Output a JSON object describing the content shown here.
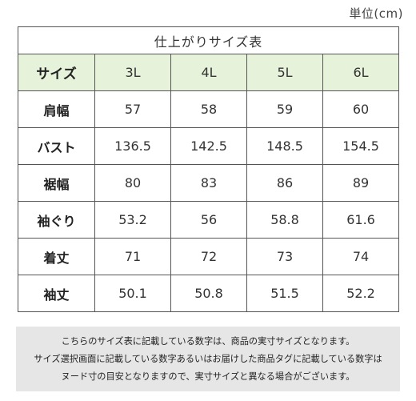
{
  "unit_label": "単位(cm)",
  "table": {
    "title": "仕上がりサイズ表",
    "header_label": "サイズ",
    "sizes": [
      "3L",
      "4L",
      "5L",
      "6L"
    ],
    "rows": [
      {
        "label": "肩幅",
        "values": [
          "57",
          "58",
          "59",
          "60"
        ]
      },
      {
        "label": "バスト",
        "values": [
          "136.5",
          "142.5",
          "148.5",
          "154.5"
        ]
      },
      {
        "label": "裾幅",
        "values": [
          "80",
          "83",
          "86",
          "89"
        ]
      },
      {
        "label": "袖ぐり",
        "values": [
          "53.2",
          "56",
          "58.8",
          "61.6"
        ]
      },
      {
        "label": "着丈",
        "values": [
          "71",
          "72",
          "73",
          "74"
        ]
      },
      {
        "label": "袖丈",
        "values": [
          "50.1",
          "50.8",
          "51.5",
          "52.2"
        ]
      }
    ],
    "header_bg": "#e6f2d9"
  },
  "note": {
    "lines": [
      "こちらのサイズ表に記載している数字は、商品の実寸サイズとなります。",
      "サイズ選択画面に記載している数字あるいはお届けした商品タグに記載している数字は",
      "ヌード寸の目安となりますので、実寸サイズと異なる場合がございます。"
    ],
    "bg": "#e6e6e6"
  }
}
